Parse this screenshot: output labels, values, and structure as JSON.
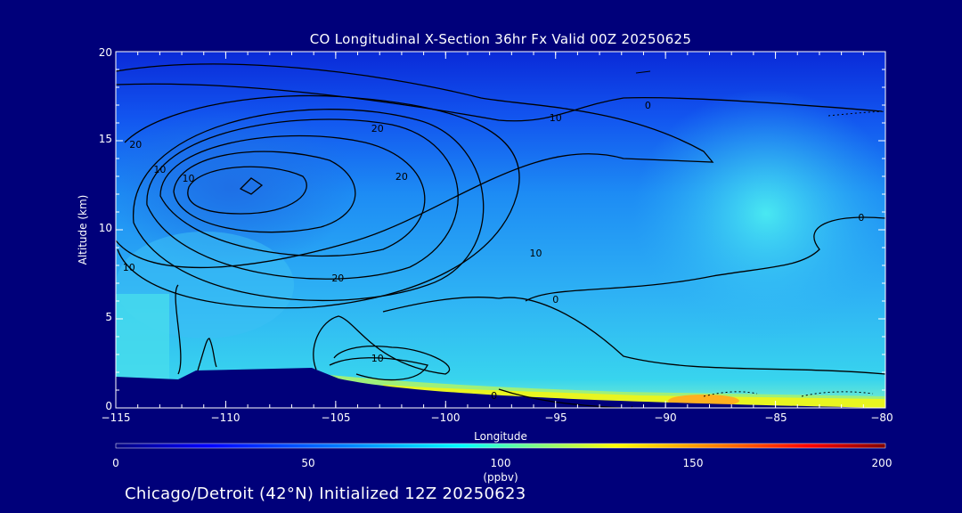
{
  "chart_data": {
    "type": "heatmap",
    "title": "CO Longitudinal X-Section 36hr  Fx Valid 00Z 20250625",
    "xlabel": "Longitude",
    "ylabel": "Altitude (km)",
    "xlim": [
      -115,
      -80
    ],
    "ylim": [
      0,
      20
    ],
    "x_ticks": [
      "−115",
      "−110",
      "−105",
      "−100",
      "−95",
      "−90",
      "−85",
      "−80"
    ],
    "y_ticks": [
      "0",
      "5",
      "10",
      "15",
      "20"
    ],
    "colorbar": {
      "min": 0,
      "max": 200,
      "ticks": [
        "0",
        "50",
        "100",
        "150",
        "200"
      ],
      "units": "(ppbv)",
      "colors": [
        "#000080",
        "#0000ff",
        "#0080ff",
        "#00ffff",
        "#80ff80",
        "#ffff00",
        "#ff8000",
        "#ff0000",
        "#800000"
      ]
    },
    "contour_labels": [
      {
        "text": "20",
        "x": -114.1,
        "y": 14.8
      },
      {
        "text": "10",
        "x": -113.0,
        "y": 13.4
      },
      {
        "text": "10",
        "x": -111.7,
        "y": 12.9
      },
      {
        "text": "20",
        "x": -103.1,
        "y": 15.7
      },
      {
        "text": "20",
        "x": -102.0,
        "y": 13.0
      },
      {
        "text": "10",
        "x": -95.0,
        "y": 16.3
      },
      {
        "text": "0",
        "x": -90.8,
        "y": 17.0
      },
      {
        "text": "0",
        "x": -81.1,
        "y": 10.7
      },
      {
        "text": "10",
        "x": -95.9,
        "y": 8.7
      },
      {
        "text": "20",
        "x": -104.9,
        "y": 7.3
      },
      {
        "text": "10",
        "x": -114.4,
        "y": 7.9
      },
      {
        "text": "0",
        "x": -95.0,
        "y": 6.1
      },
      {
        "text": "10",
        "x": -103.1,
        "y": 2.8
      },
      {
        "text": "0",
        "x": -97.8,
        "y": 0.7
      }
    ]
  },
  "footer": "Chicago/Detroit (42°N) Initialized 12Z 20250623"
}
